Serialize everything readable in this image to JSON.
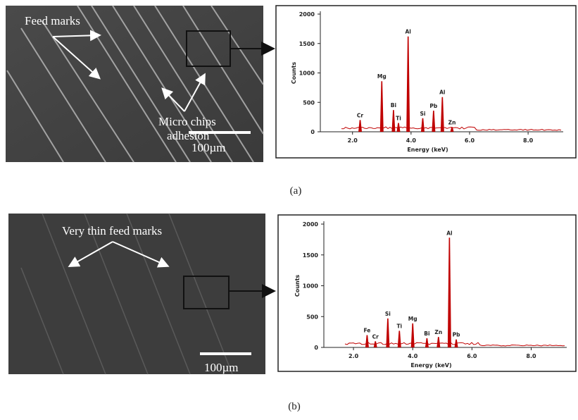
{
  "panels": [
    {
      "annotations": [
        "Feed marks",
        "Micro chips",
        "adhesion"
      ],
      "scale_bar": "100µm",
      "caption": "(a)"
    },
    {
      "annotations": [
        "Very thin feed marks"
      ],
      "scale_bar": "100µm",
      "caption": "(b)"
    }
  ],
  "chart_data": [
    {
      "type": "spectrum",
      "xlabel": "Energy (keV)",
      "ylabel": "Counts",
      "color": "#c00000",
      "labels": [
        "Cr",
        "Mg",
        "Bi",
        "Ti",
        "Al",
        "Si",
        "Pb",
        "Al",
        "Zn"
      ],
      "x": [
        2.26,
        3.0,
        3.4,
        3.57,
        3.9,
        4.4,
        4.77,
        5.07,
        5.4
      ],
      "values": [
        200,
        860,
        370,
        150,
        1620,
        230,
        360,
        590,
        80
      ],
      "xlim": [
        0.9,
        9.2
      ],
      "ylim": [
        0,
        2000
      ],
      "xticks": [
        {
          "value": 2,
          "label": "2.0"
        },
        {
          "value": 4,
          "label": "4.0"
        },
        {
          "value": 6,
          "label": "6.0"
        },
        {
          "value": 8,
          "label": "8.0"
        }
      ],
      "yticks": [
        0,
        500,
        1000,
        1500,
        2000
      ]
    },
    {
      "type": "spectrum",
      "xlabel": "Energy (keV)",
      "ylabel": "Counts",
      "color": "#c00000",
      "labels": [
        "Fe",
        "Cr",
        "Si",
        "Ti",
        "Mg",
        "Bi",
        "Zn",
        "Al",
        "Pb"
      ],
      "x": [
        2.46,
        2.74,
        3.16,
        3.55,
        4.0,
        4.48,
        4.87,
        5.24,
        5.47
      ],
      "values": [
        200,
        100,
        470,
        270,
        390,
        150,
        170,
        1780,
        130
      ],
      "xlim": [
        1.0,
        9.2
      ],
      "ylim": [
        0,
        2000
      ],
      "xticks": [
        {
          "value": 2,
          "label": "2.0"
        },
        {
          "value": 4,
          "label": "4.0"
        },
        {
          "value": 6,
          "label": "6.0"
        },
        {
          "value": 8,
          "label": "8.0"
        }
      ],
      "yticks": [
        0,
        500,
        1000,
        1500,
        2000
      ]
    }
  ]
}
